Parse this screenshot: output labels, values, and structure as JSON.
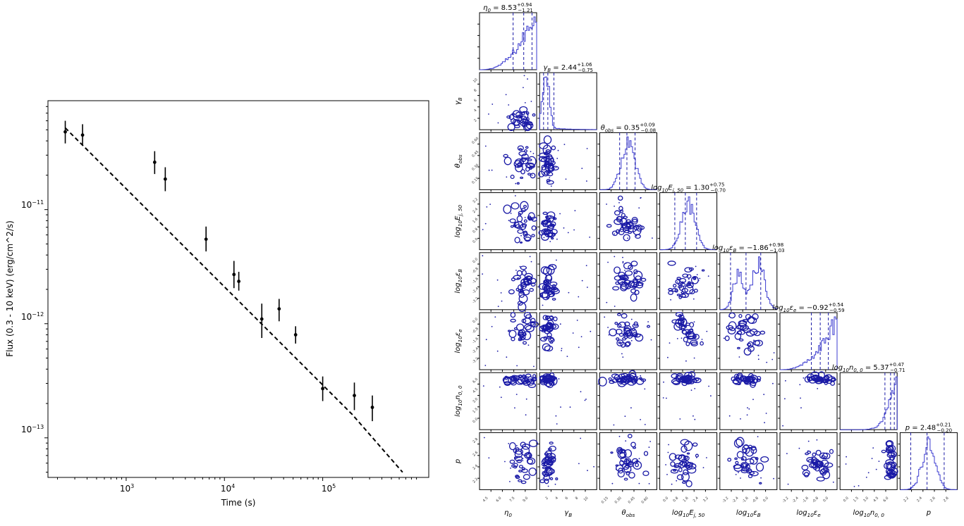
{
  "left_plot": {
    "xlabel": "Time (s)",
    "ylabel": "Flux (0.3 - 10 keV) (erg/cm^2/s)",
    "x_tick_labels": [
      {
        "base": "10",
        "exp": "3"
      },
      {
        "base": "10",
        "exp": "4"
      },
      {
        "base": "10",
        "exp": "5"
      }
    ],
    "y_tick_labels": [
      {
        "base": "10",
        "exp": "−11"
      },
      {
        "base": "10",
        "exp": "−12"
      },
      {
        "base": "10",
        "exp": "−13"
      }
    ]
  },
  "corner": {
    "x_axis_labels": [
      {
        "base": "η",
        "sub": "0"
      },
      {
        "base": "γ",
        "sub": "B"
      },
      {
        "base": "θ",
        "sub": "obs"
      },
      {
        "base": "log",
        "sub": "10",
        "tail": "E",
        "tail_sub": "j, 50"
      },
      {
        "base": "log",
        "sub": "10",
        "tail": "ε",
        "tail_sub": "B"
      },
      {
        "base": "log",
        "sub": "10",
        "tail": "ε",
        "tail_sub": "e"
      },
      {
        "base": "log",
        "sub": "10",
        "tail": "n",
        "tail_sub": "0, 0"
      },
      {
        "base": "p",
        "sub": ""
      }
    ],
    "y_axis_labels": [
      {
        "base": "γ",
        "sub": "B"
      },
      {
        "base": "θ",
        "sub": "obs"
      },
      {
        "base": "log",
        "sub": "10",
        "tail": "E",
        "tail_sub": "j, 50"
      },
      {
        "base": "log",
        "sub": "10",
        "tail": "ε",
        "tail_sub": "B"
      },
      {
        "base": "log",
        "sub": "10",
        "tail": "ε",
        "tail_sub": "e"
      },
      {
        "base": "log",
        "sub": "10",
        "tail": "n",
        "tail_sub": "0, 0"
      },
      {
        "base": "p",
        "sub": ""
      }
    ],
    "titles": [
      {
        "lhs": "η",
        "lhs_sub": "0",
        "val": " = 8.53",
        "up": "+0.94",
        "dn": "−1.21"
      },
      {
        "lhs": "γ",
        "lhs_sub": "B",
        "val": " = 2.44",
        "up": "+1.06",
        "dn": "−0.75"
      },
      {
        "lhs": "θ",
        "lhs_sub": "obs",
        "val": " = 0.35",
        "up": "+0.09",
        "dn": "−0.08"
      },
      {
        "lhs": "log",
        "lhs_sub": "10",
        "lhs_tail": "E",
        "lhs_tail_sub": "j, 50",
        "val": " = 1.30",
        "up": "+0.75",
        "dn": "−0.70"
      },
      {
        "lhs": "log",
        "lhs_sub": "10",
        "lhs_tail": "ε",
        "lhs_tail_sub": "B",
        "val": " = −1.86",
        "up": "+0.98",
        "dn": "−1.03"
      },
      {
        "lhs": "log",
        "lhs_sub": "10",
        "lhs_tail": "ε",
        "lhs_tail_sub": "e",
        "val": " = −0.92",
        "up": "+0.54",
        "dn": "−0.59"
      },
      {
        "lhs": "log",
        "lhs_sub": "10",
        "lhs_tail": "n",
        "lhs_tail_sub": "0, 0",
        "val": " = 5.37",
        "up": "+0.47",
        "dn": "−0.71"
      },
      {
        "lhs": "p",
        "lhs_sub": "",
        "val": " = 2.48",
        "up": "+0.21",
        "dn": "−0.20"
      }
    ],
    "bottom_tick_labels": [
      [
        "4.5",
        "6.0",
        "7.5",
        "9.0"
      ],
      [
        "2",
        "4",
        "6",
        "8",
        "10"
      ],
      [
        "0.15",
        "0.30",
        "0.45",
        "0.60"
      ],
      [
        "0.0",
        "0.8",
        "1.6",
        "2.4",
        "3.2"
      ],
      [
        "-3.2",
        "-2.4",
        "-1.6",
        "-0.8",
        "0.0"
      ],
      [
        "-3.2",
        "-2.4",
        "-1.6",
        "-0.8",
        "0.0"
      ],
      [
        "0.0",
        "1.5",
        "3.0",
        "4.5",
        "6.0"
      ],
      [
        "2.2",
        "2.4",
        "2.6",
        "2.8"
      ]
    ],
    "left_tick_labels": [
      [
        "2",
        "4",
        "6",
        "8",
        "10"
      ],
      [
        "0.15",
        "0.30",
        "0.45",
        "0.60"
      ],
      [
        "0.0",
        "0.8",
        "1.6",
        "2.4",
        "3.2"
      ],
      [
        "-3.2",
        "-2.4",
        "-1.6",
        "-0.8",
        "0.0"
      ],
      [
        "-3.2",
        "-2.4",
        "-1.6",
        "-0.8",
        "0.0"
      ],
      [
        "0.0",
        "1.5",
        "3.0",
        "4.5",
        "6.0"
      ],
      [
        "2.2",
        "2.4",
        "2.6",
        "2.8"
      ]
    ],
    "colors": {
      "contour": "#1a1aa6",
      "histogram": "#3b3bd0",
      "quantile": "#1a1aa6"
    }
  },
  "chart_data": [
    {
      "type": "scatter",
      "xlabel": "Time (s)",
      "ylabel": "Flux (0.3 - 10 keV) (erg/cm^2/s)",
      "x_scale": "log",
      "y_scale": "log",
      "xlim": [
        160,
        1200000
      ],
      "ylim": [
        4.5e-14,
        9e-11
      ],
      "grid": false,
      "points": [
        {
          "x": 240,
          "y": 4.8e-11,
          "lo": 3.8e-11,
          "hi": 6e-11
        },
        {
          "x": 360,
          "y": 4.5e-11,
          "lo": 3.7e-11,
          "hi": 5.6e-11
        },
        {
          "x": 1950,
          "y": 2.6e-11,
          "lo": 2.05e-11,
          "hi": 3.25e-11
        },
        {
          "x": 2500,
          "y": 1.85e-11,
          "lo": 1.45e-11,
          "hi": 2.35e-11
        },
        {
          "x": 6500,
          "y": 5.5e-12,
          "lo": 4.3e-12,
          "hi": 7.1e-12
        },
        {
          "x": 12500,
          "y": 2.7e-12,
          "lo": 2.05e-12,
          "hi": 3.55e-12
        },
        {
          "x": 14000,
          "y": 2.35e-12,
          "lo": 1.95e-12,
          "hi": 2.85e-12
        },
        {
          "x": 24000,
          "y": 1.1e-12,
          "lo": 7.5e-13,
          "hi": 1.5e-12
        },
        {
          "x": 36000,
          "y": 1.35e-12,
          "lo": 1.05e-12,
          "hi": 1.65e-12
        },
        {
          "x": 53000,
          "y": 8e-13,
          "lo": 6.7e-13,
          "hi": 9.5e-13
        },
        {
          "x": 100000,
          "y": 2.7e-13,
          "lo": 2.1e-13,
          "hi": 3.45e-13
        },
        {
          "x": 210000,
          "y": 2.35e-13,
          "lo": 1.75e-13,
          "hi": 3.05e-13
        },
        {
          "x": 320000,
          "y": 1.85e-13,
          "lo": 1.4e-13,
          "hi": 2.35e-13
        }
      ],
      "model_line": [
        [
          240,
          5.2e-11
        ],
        [
          200000,
          1.6e-13
        ],
        [
          650000,
          5e-14
        ]
      ]
    },
    {
      "type": "corner",
      "parameters": [
        "η0",
        "γB",
        "θobs",
        "log10Ej,50",
        "log10εB",
        "log10εe",
        "log10n0,0",
        "p"
      ],
      "ranges": [
        [
          3.5,
          10.0
        ],
        [
          1,
          11
        ],
        [
          0.05,
          0.68
        ],
        [
          -0.4,
          3.4
        ],
        [
          -3.6,
          0.2
        ],
        [
          -3.6,
          0.2
        ],
        [
          -1,
          6.2
        ],
        [
          2.15,
          2.85
        ]
      ],
      "medians": [
        8.53,
        2.44,
        0.35,
        1.3,
        -1.86,
        -0.92,
        5.37,
        2.48
      ],
      "err_plus": [
        0.94,
        1.06,
        0.09,
        0.75,
        0.98,
        0.54,
        0.47,
        0.21
      ],
      "err_minus": [
        1.21,
        0.75,
        0.08,
        0.7,
        1.03,
        0.59,
        0.71,
        0.2
      ],
      "hist_mode": [
        "skew-high",
        "skew-low",
        "gauss",
        "gauss",
        "bimodal",
        "skew-high",
        "spike-high",
        "gauss"
      ]
    }
  ]
}
